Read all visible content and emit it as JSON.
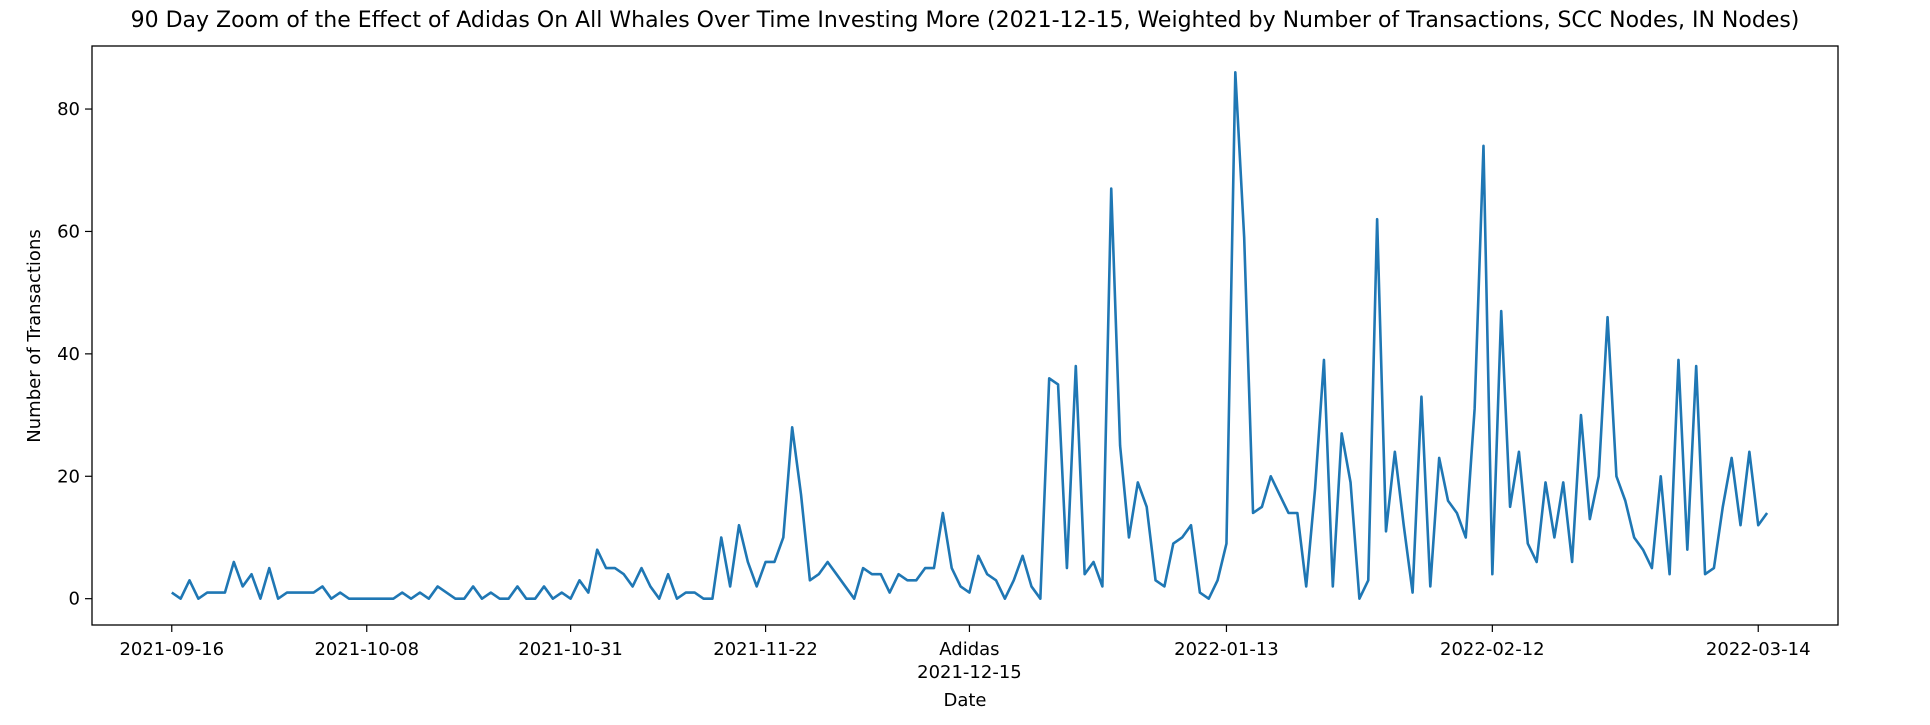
{
  "chart_data": {
    "type": "line",
    "title": "90 Day Zoom of the Effect of Adidas On All Whales Over Time Investing More (2021-12-15, Weighted by Number of Transactions, SCC Nodes, IN Nodes)",
    "xlabel": "Date",
    "ylabel": "Number of Transactions",
    "x_start": "2021-09-16",
    "x_end": "2022-03-14",
    "xlim": [
      "2021-09-07",
      "2022-03-23"
    ],
    "ylim": [
      -4.3,
      90.3
    ],
    "grid": false,
    "legend": "none",
    "line_color": "#1f77b4",
    "x_ticks": [
      {
        "date": "2021-09-16",
        "label": "2021-09-16",
        "sublabel": ""
      },
      {
        "date": "2021-10-08",
        "label": "2021-10-08",
        "sublabel": ""
      },
      {
        "date": "2021-10-31",
        "label": "2021-10-31",
        "sublabel": ""
      },
      {
        "date": "2021-11-22",
        "label": "2021-11-22",
        "sublabel": ""
      },
      {
        "date": "2021-12-15",
        "label": "Adidas",
        "sublabel": "2021-12-15"
      },
      {
        "date": "2022-01-13",
        "label": "2022-01-13",
        "sublabel": ""
      },
      {
        "date": "2022-02-12",
        "label": "2022-02-12",
        "sublabel": ""
      },
      {
        "date": "2022-03-14",
        "label": "2022-03-14",
        "sublabel": ""
      }
    ],
    "y_ticks": [
      0,
      20,
      40,
      60,
      80
    ],
    "series": [
      {
        "values": [
          1,
          0,
          3,
          0,
          1,
          1,
          1,
          6,
          2,
          4,
          0,
          5,
          0,
          1,
          1,
          1,
          1,
          2,
          0,
          1,
          0,
          0,
          0,
          0,
          0,
          0,
          1,
          0,
          1,
          0,
          2,
          1,
          0,
          0,
          2,
          0,
          1,
          0,
          0,
          2,
          0,
          0,
          2,
          0,
          1,
          0,
          3,
          1,
          8,
          5,
          5,
          4,
          2,
          5,
          2,
          0,
          4,
          0,
          1,
          1,
          0,
          0,
          10,
          2,
          12,
          6,
          2,
          6,
          6,
          10,
          28,
          17,
          3,
          4,
          6,
          4,
          2,
          0,
          5,
          4,
          4,
          1,
          4,
          3,
          3,
          5,
          5,
          14,
          5,
          2,
          1,
          7,
          4,
          3,
          0,
          3,
          7,
          2,
          0,
          36,
          35,
          5,
          38,
          4,
          6,
          2,
          67,
          25,
          10,
          19,
          15,
          3,
          2,
          9,
          10,
          12,
          1,
          0,
          3,
          9,
          86,
          59,
          14,
          15,
          20,
          17,
          14,
          14,
          2,
          18,
          39,
          2,
          27,
          19,
          0,
          3,
          62,
          11,
          24,
          12,
          1,
          33,
          2,
          23,
          16,
          14,
          10,
          31,
          74,
          4,
          47,
          15,
          24,
          9,
          6,
          19,
          10,
          19,
          6,
          30,
          13,
          20,
          46,
          20,
          16,
          10,
          8,
          5,
          20,
          4,
          39,
          8,
          38,
          4,
          5,
          15,
          23,
          12,
          24,
          12,
          14
        ]
      }
    ]
  }
}
